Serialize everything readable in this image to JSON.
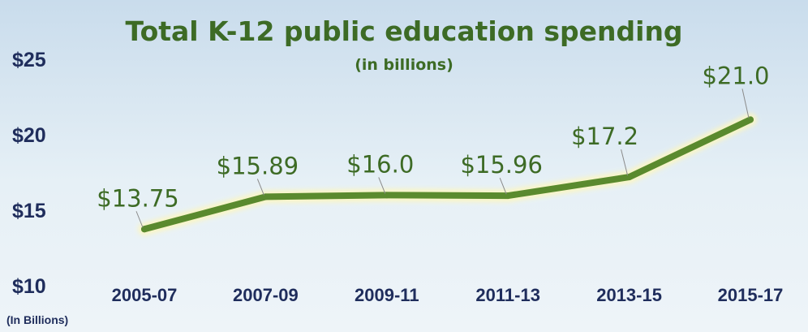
{
  "chart_data": {
    "type": "line",
    "title": "Total K-12 public education spending",
    "subtitle": "(in billions)",
    "ylabel": "(In Billions)",
    "ylim": [
      10,
      25
    ],
    "y_ticks": [
      "$10",
      "$15",
      "$20",
      "$25"
    ],
    "categories": [
      "2005-07",
      "2007-09",
      "2009-11",
      "2011-13",
      "2013-15",
      "2015-17"
    ],
    "series": [
      {
        "values": [
          13.75,
          15.89,
          16.0,
          15.96,
          17.2,
          21.0
        ],
        "labels": [
          "$13.75",
          "$15.89",
          "$16.0",
          "$15.96",
          "$17.2",
          "$21.0"
        ]
      }
    ],
    "grid": false,
    "line_color": "#5a8a2e",
    "background_color": "#dbe9f3"
  }
}
